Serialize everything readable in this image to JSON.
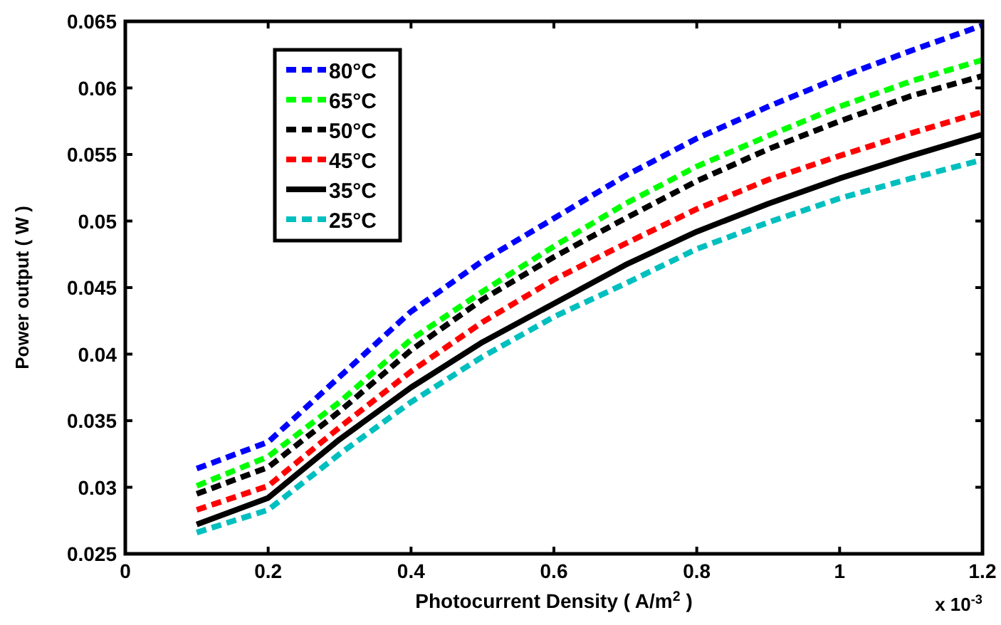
{
  "chart_data": {
    "type": "line",
    "xlabel": "Photocurrent Density ( A/m$^{2}$ )",
    "ylabel": "Power output ( W )",
    "x": [
      0.1,
      0.2,
      0.3,
      0.4,
      0.5,
      0.6,
      0.7,
      0.8,
      0.9,
      1.0,
      1.1,
      1.2
    ],
    "xlim": [
      0,
      1.2
    ],
    "xticks": [
      0,
      0.2,
      0.4,
      0.6,
      0.8,
      1,
      1.2
    ],
    "ylim": [
      0.025,
      0.065
    ],
    "yticks": [
      0.025,
      0.03,
      0.035,
      0.04,
      0.045,
      0.05,
      0.055,
      0.06,
      0.065
    ],
    "annotations": [
      "x 10$^{-3}$"
    ],
    "legend": "top left",
    "grid": false,
    "marker": "none",
    "series": [
      {
        "name": "80°C",
        "color": "#0000ff",
        "line_style": "dashed",
        "values": [
          0.0314,
          0.0334,
          0.0383,
          0.0432,
          0.047,
          0.0502,
          0.0534,
          0.0562,
          0.0586,
          0.0608,
          0.0628,
          0.0647
        ]
      },
      {
        "name": "65°C",
        "color": "#00ff00",
        "line_style": "dashed",
        "values": [
          0.0301,
          0.0323,
          0.0364,
          0.0411,
          0.0447,
          0.0481,
          0.0513,
          0.0541,
          0.0564,
          0.0586,
          0.0605,
          0.0621
        ]
      },
      {
        "name": "50°C",
        "color": "#000000",
        "line_style": "dashed",
        "values": [
          0.0295,
          0.0315,
          0.0357,
          0.0403,
          0.0441,
          0.0473,
          0.0502,
          0.053,
          0.0554,
          0.0575,
          0.0594,
          0.0609
        ]
      },
      {
        "name": "45°C",
        "color": "#ff0000",
        "line_style": "dashed",
        "values": [
          0.0283,
          0.0301,
          0.0345,
          0.0387,
          0.0424,
          0.0456,
          0.0483,
          0.0509,
          0.0531,
          0.0549,
          0.0566,
          0.0582
        ]
      },
      {
        "name": "35°C",
        "color": "#000000",
        "line_style": "solid",
        "values": [
          0.0272,
          0.0292,
          0.0336,
          0.0375,
          0.0409,
          0.0438,
          0.0467,
          0.0492,
          0.0513,
          0.0532,
          0.0549,
          0.0565
        ]
      },
      {
        "name": "25°C",
        "color": "#00bfbf",
        "line_style": "dashed",
        "values": [
          0.0266,
          0.0283,
          0.0325,
          0.0364,
          0.0398,
          0.0428,
          0.0453,
          0.0479,
          0.0499,
          0.0517,
          0.0532,
          0.0546
        ]
      }
    ]
  }
}
